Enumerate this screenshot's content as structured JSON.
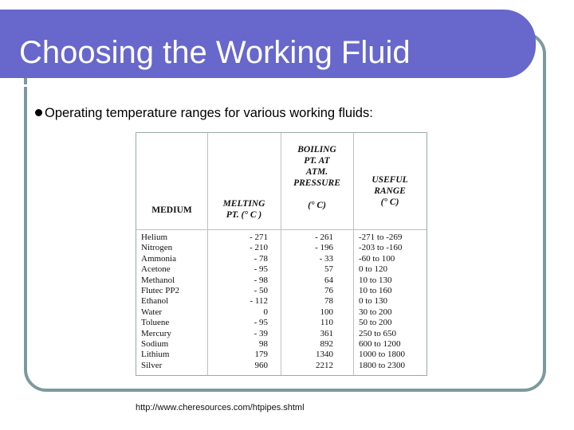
{
  "slide": {
    "title": "Choosing the Working Fluid",
    "bullet": "Operating temperature ranges for various working fluids:",
    "source_url": "http://www.cheresources.com/htpipes.shtml"
  },
  "colors": {
    "title_bar": "#6767cc",
    "frame": "#7c9a9c"
  },
  "table": {
    "headers": {
      "medium": "MEDIUM",
      "melting": [
        "MELTING",
        "PT. (° C )"
      ],
      "boiling": [
        "BOILING",
        "PT. AT",
        "ATM.",
        "PRESSURE",
        "(° C)"
      ],
      "useful": [
        "USEFUL",
        "RANGE",
        "(° C)"
      ]
    },
    "rows": [
      {
        "medium": "Helium",
        "melting": "- 271",
        "boiling": "- 261",
        "range": "-271 to -269"
      },
      {
        "medium": "Nitrogen",
        "melting": "- 210",
        "boiling": "- 196",
        "range": "-203 to -160"
      },
      {
        "medium": "Ammonia",
        "melting": "- 78",
        "boiling": "- 33",
        "range": "-60 to 100"
      },
      {
        "medium": "Acetone",
        "melting": "- 95",
        "boiling": "57",
        "range": "0 to 120"
      },
      {
        "medium": "Methanol",
        "melting": "- 98",
        "boiling": "64",
        "range": "10 to 130"
      },
      {
        "medium": "Flutec PP2",
        "melting": "- 50",
        "boiling": "76",
        "range": "10 to 160"
      },
      {
        "medium": "Ethanol",
        "melting": "- 112",
        "boiling": "78",
        "range": "0 to 130"
      },
      {
        "medium": "Water",
        "melting": "0",
        "boiling": "100",
        "range": "30 to 200"
      },
      {
        "medium": "Toluene",
        "melting": "- 95",
        "boiling": "110",
        "range": "50 to 200"
      },
      {
        "medium": "Mercury",
        "melting": "- 39",
        "boiling": "361",
        "range": "250 to 650"
      },
      {
        "medium": "Sodium",
        "melting": "98",
        "boiling": "892",
        "range": "600 to 1200"
      },
      {
        "medium": "Lithium",
        "melting": "179",
        "boiling": "1340",
        "range": "1000 to 1800"
      },
      {
        "medium": "Silver",
        "melting": "960",
        "boiling": "2212",
        "range": "1800 to 2300"
      }
    ]
  }
}
